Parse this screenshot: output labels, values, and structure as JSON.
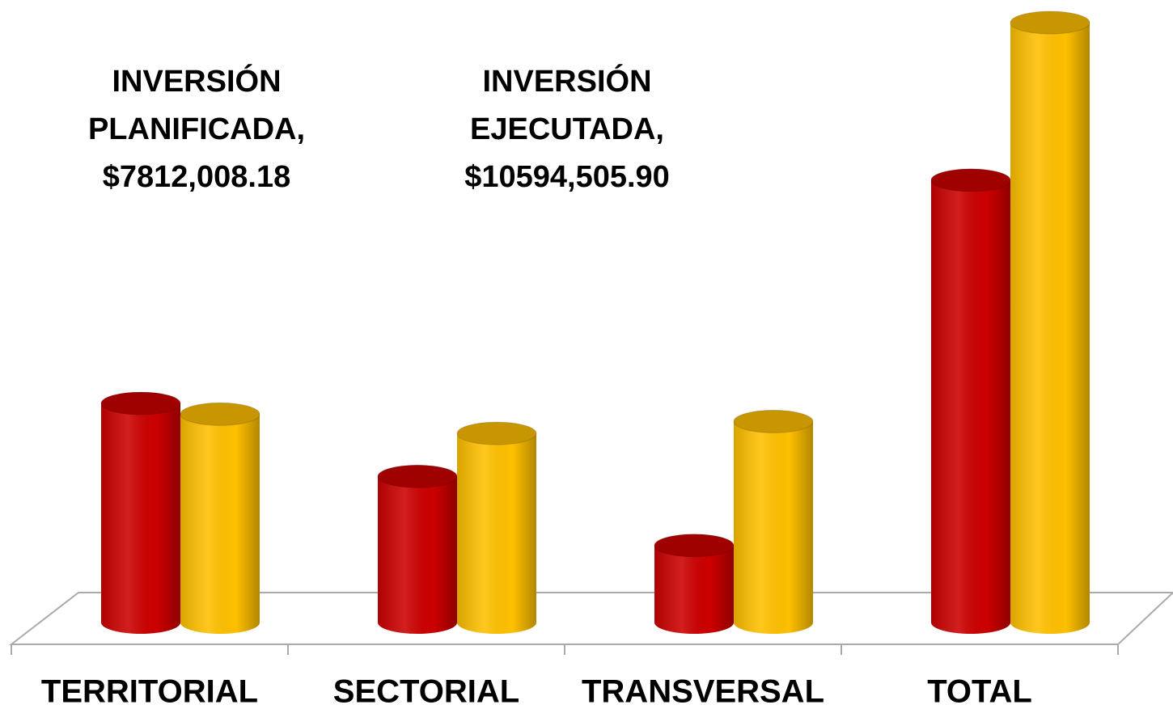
{
  "chart_data": {
    "type": "bar3d",
    "categories": [
      "TERRITORIAL",
      "SECTORIAL",
      "TRANSVERSAL",
      "TOTAL"
    ],
    "series": [
      {
        "name": "INVERSIÓN PLANIFICADA,",
        "color": "#cc0000",
        "values": [
          3870000,
          2580000,
          1360000,
          7812008.18
        ],
        "value_labels": [
          null,
          null,
          null,
          "$7812,008.18"
        ]
      },
      {
        "name": "INVERSIÓN EJECUTADA,",
        "color": "#ffc000",
        "values": [
          3680000,
          3340000,
          3550000,
          10594505.9
        ],
        "value_labels": [
          null,
          null,
          null,
          "$10594,505.90"
        ]
      }
    ]
  }
}
